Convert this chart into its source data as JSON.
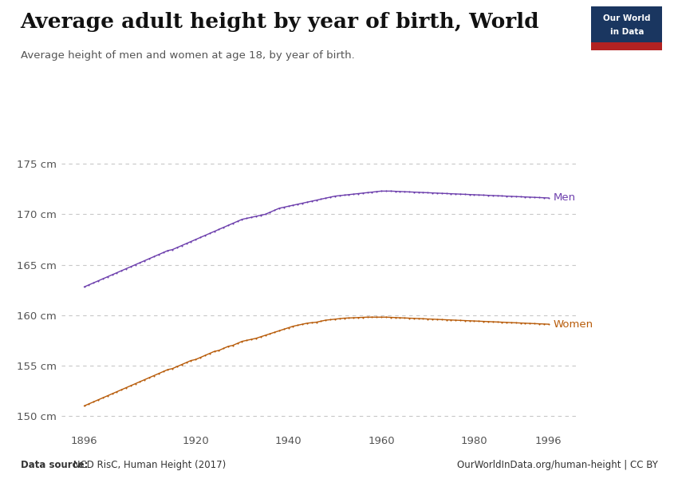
{
  "title": "Average adult height by year of birth, World",
  "subtitle": "Average height of men and women at age 18, by year of birth.",
  "men_color": "#6d3fad",
  "women_color": "#b85c0a",
  "background_color": "#ffffff",
  "grid_color": "#c8c8c8",
  "x_ticks": [
    1896,
    1920,
    1940,
    1960,
    1980,
    1996
  ],
  "y_ticks": [
    150,
    155,
    160,
    165,
    170,
    175
  ],
  "datasource_bold": "Data source:",
  "datasource_rest": " NCD RisC, Human Height (2017)",
  "url": "OurWorldInData.org/human-height | CC BY",
  "owid_box_color": "#1a3660",
  "owid_red": "#b22222",
  "men_data": {
    "years": [
      1896,
      1897,
      1898,
      1899,
      1900,
      1901,
      1902,
      1903,
      1904,
      1905,
      1906,
      1907,
      1908,
      1909,
      1910,
      1911,
      1912,
      1913,
      1914,
      1915,
      1916,
      1917,
      1918,
      1919,
      1920,
      1921,
      1922,
      1923,
      1924,
      1925,
      1926,
      1927,
      1928,
      1929,
      1930,
      1931,
      1932,
      1933,
      1934,
      1935,
      1936,
      1937,
      1938,
      1939,
      1940,
      1941,
      1942,
      1943,
      1944,
      1945,
      1946,
      1947,
      1948,
      1949,
      1950,
      1951,
      1952,
      1953,
      1954,
      1955,
      1956,
      1957,
      1958,
      1959,
      1960,
      1961,
      1962,
      1963,
      1964,
      1965,
      1966,
      1967,
      1968,
      1969,
      1970,
      1971,
      1972,
      1973,
      1974,
      1975,
      1976,
      1977,
      1978,
      1979,
      1980,
      1981,
      1982,
      1983,
      1984,
      1985,
      1986,
      1987,
      1988,
      1989,
      1990,
      1991,
      1992,
      1993,
      1994,
      1995,
      1996
    ],
    "heights": [
      162.8,
      163.0,
      163.2,
      163.4,
      163.6,
      163.8,
      164.0,
      164.2,
      164.4,
      164.6,
      164.8,
      165.0,
      165.2,
      165.4,
      165.6,
      165.8,
      166.0,
      166.2,
      166.4,
      166.5,
      166.7,
      166.9,
      167.1,
      167.3,
      167.5,
      167.7,
      167.9,
      168.1,
      168.3,
      168.5,
      168.7,
      168.9,
      169.1,
      169.3,
      169.5,
      169.6,
      169.7,
      169.8,
      169.9,
      170.0,
      170.2,
      170.4,
      170.6,
      170.7,
      170.8,
      170.9,
      171.0,
      171.1,
      171.2,
      171.3,
      171.4,
      171.5,
      171.6,
      171.7,
      171.8,
      171.85,
      171.9,
      171.95,
      172.0,
      172.05,
      172.1,
      172.15,
      172.2,
      172.25,
      172.3,
      172.3,
      172.3,
      172.28,
      172.26,
      172.24,
      172.22,
      172.2,
      172.18,
      172.16,
      172.14,
      172.12,
      172.1,
      172.08,
      172.06,
      172.04,
      172.02,
      172.0,
      171.98,
      171.96,
      171.94,
      171.92,
      171.9,
      171.88,
      171.86,
      171.84,
      171.82,
      171.8,
      171.78,
      171.76,
      171.74,
      171.72,
      171.7,
      171.68,
      171.66,
      171.64,
      171.62
    ]
  },
  "women_data": {
    "years": [
      1896,
      1897,
      1898,
      1899,
      1900,
      1901,
      1902,
      1903,
      1904,
      1905,
      1906,
      1907,
      1908,
      1909,
      1910,
      1911,
      1912,
      1913,
      1914,
      1915,
      1916,
      1917,
      1918,
      1919,
      1920,
      1921,
      1922,
      1923,
      1924,
      1925,
      1926,
      1927,
      1928,
      1929,
      1930,
      1931,
      1932,
      1933,
      1934,
      1935,
      1936,
      1937,
      1938,
      1939,
      1940,
      1941,
      1942,
      1943,
      1944,
      1945,
      1946,
      1947,
      1948,
      1949,
      1950,
      1951,
      1952,
      1953,
      1954,
      1955,
      1956,
      1957,
      1958,
      1959,
      1960,
      1961,
      1962,
      1963,
      1964,
      1965,
      1966,
      1967,
      1968,
      1969,
      1970,
      1971,
      1972,
      1973,
      1974,
      1975,
      1976,
      1977,
      1978,
      1979,
      1980,
      1981,
      1982,
      1983,
      1984,
      1985,
      1986,
      1987,
      1988,
      1989,
      1990,
      1991,
      1992,
      1993,
      1994,
      1995,
      1996
    ],
    "heights": [
      151.0,
      151.2,
      151.4,
      151.6,
      151.8,
      152.0,
      152.2,
      152.4,
      152.6,
      152.8,
      153.0,
      153.2,
      153.4,
      153.6,
      153.8,
      154.0,
      154.2,
      154.4,
      154.6,
      154.7,
      154.9,
      155.1,
      155.3,
      155.5,
      155.6,
      155.8,
      156.0,
      156.2,
      156.4,
      156.5,
      156.7,
      156.9,
      157.0,
      157.2,
      157.4,
      157.5,
      157.6,
      157.7,
      157.85,
      158.0,
      158.15,
      158.3,
      158.45,
      158.6,
      158.75,
      158.9,
      159.0,
      159.1,
      159.2,
      159.25,
      159.3,
      159.4,
      159.5,
      159.55,
      159.6,
      159.65,
      159.7,
      159.72,
      159.74,
      159.76,
      159.78,
      159.8,
      159.8,
      159.8,
      159.8,
      159.8,
      159.78,
      159.76,
      159.74,
      159.72,
      159.7,
      159.68,
      159.66,
      159.64,
      159.62,
      159.6,
      159.58,
      159.56,
      159.54,
      159.52,
      159.5,
      159.48,
      159.46,
      159.44,
      159.42,
      159.4,
      159.38,
      159.36,
      159.34,
      159.32,
      159.3,
      159.28,
      159.26,
      159.24,
      159.22,
      159.2,
      159.18,
      159.16,
      159.14,
      159.12,
      159.1
    ]
  }
}
